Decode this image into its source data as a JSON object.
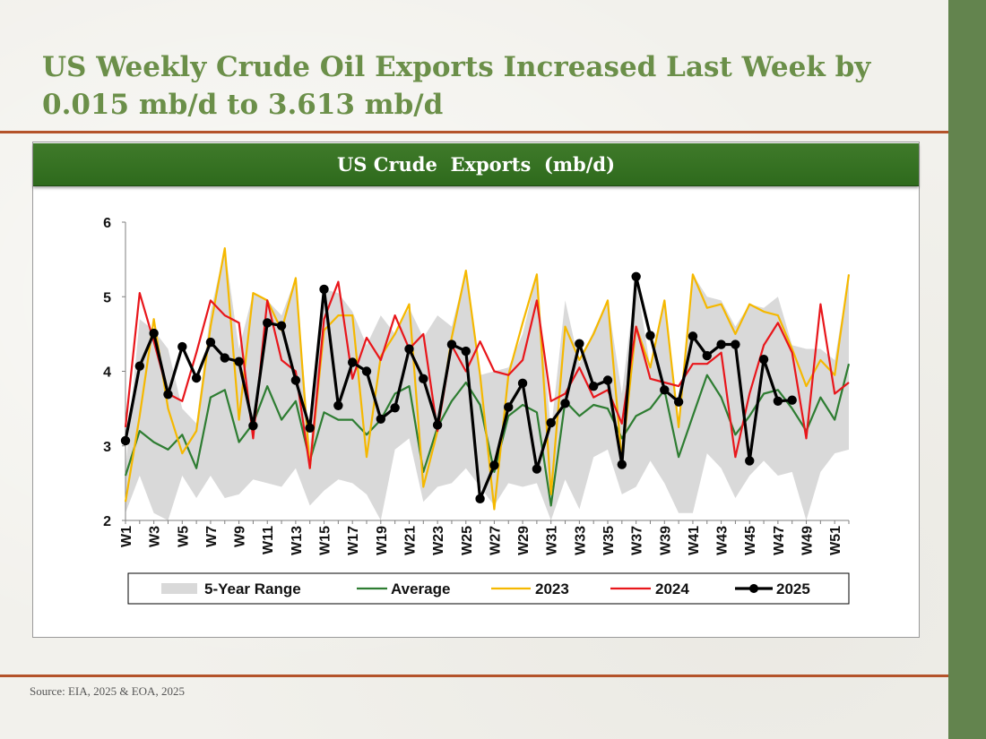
{
  "slide": {
    "title": "US Weekly Crude Oil Exports Increased Last Week by 0.015 mb/d to 3.613 mb/d",
    "source": "Source: EIA, 2025 & EOA, 2025"
  },
  "colors": {
    "title": "#6b8f49",
    "accent_bar": "#63844e",
    "rule": "#b4532a",
    "header_bg": "#357024",
    "range_fill": "#d9d9d9",
    "average": "#2e7d32",
    "y2023": "#f5b800",
    "y2024": "#e8161b",
    "y2025": "#000000"
  },
  "chart_data": {
    "type": "line",
    "title": "US Crude  Exports  (mb/d)",
    "xlabel": "",
    "ylabel": "",
    "ylim": [
      2,
      6
    ],
    "yticks": [
      "2",
      "3",
      "4",
      "5",
      "6"
    ],
    "grid": false,
    "legend_position": "bottom",
    "categories": [
      "W1",
      "W2",
      "W3",
      "W4",
      "W5",
      "W6",
      "W7",
      "W8",
      "W9",
      "W10",
      "W11",
      "W12",
      "W13",
      "W14",
      "W15",
      "W16",
      "W17",
      "W18",
      "W19",
      "W20",
      "W21",
      "W22",
      "W23",
      "W24",
      "W25",
      "W26",
      "W27",
      "W28",
      "W29",
      "W30",
      "W31",
      "W32",
      "W33",
      "W34",
      "W35",
      "W36",
      "W37",
      "W38",
      "W39",
      "W40",
      "W41",
      "W42",
      "W43",
      "W44",
      "W45",
      "W46",
      "W47",
      "W48",
      "W49",
      "W50",
      "W51",
      "W52"
    ],
    "x_tick_labels": [
      "W1",
      "W3",
      "W5",
      "W7",
      "W9",
      "W11",
      "W13",
      "W15",
      "W17",
      "W19",
      "W21",
      "W23",
      "W25",
      "W27",
      "W29",
      "W31",
      "W33",
      "W35",
      "W37",
      "W39",
      "W41",
      "W43",
      "W45",
      "W47",
      "W49",
      "W51"
    ],
    "range": {
      "name": "5-Year Range",
      "low": [
        2.1,
        2.6,
        2.1,
        2.0,
        2.6,
        2.3,
        2.6,
        2.3,
        2.35,
        2.55,
        2.5,
        2.45,
        2.7,
        2.2,
        2.4,
        2.55,
        2.5,
        2.35,
        2.0,
        2.95,
        3.1,
        2.25,
        2.45,
        2.5,
        2.7,
        2.45,
        2.2,
        2.5,
        2.45,
        2.5,
        2.0,
        2.55,
        2.15,
        2.85,
        2.95,
        2.35,
        2.45,
        2.8,
        2.5,
        2.1,
        2.1,
        2.9,
        2.7,
        2.3,
        2.6,
        2.8,
        2.6,
        2.65,
        2.0,
        2.65,
        2.9,
        2.95
      ],
      "high": [
        2.7,
        4.7,
        4.55,
        4.3,
        3.5,
        3.3,
        4.8,
        5.65,
        4.3,
        5.05,
        4.95,
        4.75,
        5.25,
        3.0,
        5.1,
        5.05,
        4.8,
        4.35,
        4.75,
        4.5,
        4.85,
        4.45,
        4.75,
        4.6,
        5.35,
        3.95,
        4.0,
        4.05,
        4.5,
        5.3,
        3.2,
        4.95,
        4.1,
        4.55,
        4.95,
        3.7,
        5.25,
        4.05,
        4.95,
        3.25,
        5.3,
        5.0,
        4.95,
        4.6,
        4.9,
        4.85,
        5.0,
        4.35,
        4.3,
        4.3,
        4.15,
        5.3
      ]
    },
    "series": [
      {
        "name": "Average",
        "values": [
          2.6,
          3.2,
          3.05,
          2.95,
          3.15,
          2.7,
          3.65,
          3.75,
          3.05,
          3.3,
          3.8,
          3.35,
          3.6,
          2.8,
          3.45,
          3.35,
          3.35,
          3.15,
          3.35,
          3.7,
          3.8,
          2.65,
          3.25,
          3.6,
          3.85,
          3.55,
          2.65,
          3.4,
          3.55,
          3.45,
          2.2,
          3.6,
          3.4,
          3.55,
          3.5,
          3.1,
          3.4,
          3.5,
          3.75,
          2.85,
          3.4,
          3.95,
          3.65,
          3.15,
          3.4,
          3.7,
          3.75,
          3.5,
          3.2,
          3.65,
          3.35,
          4.1
        ]
      },
      {
        "name": "2023",
        "values": [
          2.25,
          3.4,
          4.7,
          3.5,
          2.9,
          3.2,
          4.6,
          5.65,
          3.35,
          5.05,
          4.95,
          4.55,
          5.25,
          2.7,
          4.55,
          4.75,
          4.75,
          2.85,
          4.2,
          4.5,
          4.9,
          2.45,
          3.2,
          4.45,
          5.35,
          3.95,
          2.15,
          3.95,
          4.65,
          5.3,
          2.35,
          4.6,
          4.15,
          4.5,
          4.95,
          2.8,
          4.6,
          4.05,
          4.95,
          3.25,
          5.3,
          4.85,
          4.9,
          4.5,
          4.9,
          4.8,
          4.75,
          4.3,
          3.8,
          4.15,
          3.95,
          5.3
        ]
      },
      {
        "name": "2024",
        "values": [
          3.25,
          5.05,
          4.4,
          3.7,
          3.6,
          4.25,
          4.95,
          4.75,
          4.65,
          3.1,
          4.95,
          4.15,
          4.0,
          2.7,
          4.7,
          5.2,
          3.9,
          4.45,
          4.15,
          4.75,
          4.3,
          4.5,
          3.2,
          4.35,
          4.0,
          4.4,
          4.0,
          3.95,
          4.15,
          4.95,
          3.6,
          3.7,
          4.05,
          3.65,
          3.75,
          3.3,
          4.6,
          3.9,
          3.85,
          3.8,
          4.1,
          4.1,
          4.25,
          2.85,
          3.7,
          4.35,
          4.65,
          4.25,
          3.1,
          4.9,
          3.7,
          3.85
        ]
      },
      {
        "name": "2025",
        "values": [
          3.07,
          4.07,
          4.51,
          3.69,
          4.33,
          3.91,
          4.39,
          4.18,
          4.13,
          3.27,
          4.65,
          4.61,
          3.88,
          3.24,
          5.1,
          3.54,
          4.12,
          4.0,
          3.36,
          3.51,
          4.3,
          3.9,
          3.28,
          4.36,
          4.27,
          2.29,
          2.74,
          3.52,
          3.84,
          2.69,
          3.31,
          3.57,
          4.37,
          3.8,
          3.88,
          2.75,
          5.27,
          4.48,
          3.75,
          3.59,
          4.47,
          4.21,
          4.36,
          4.36,
          2.8,
          4.16,
          3.6,
          3.613,
          null,
          null,
          null,
          null
        ]
      }
    ]
  }
}
